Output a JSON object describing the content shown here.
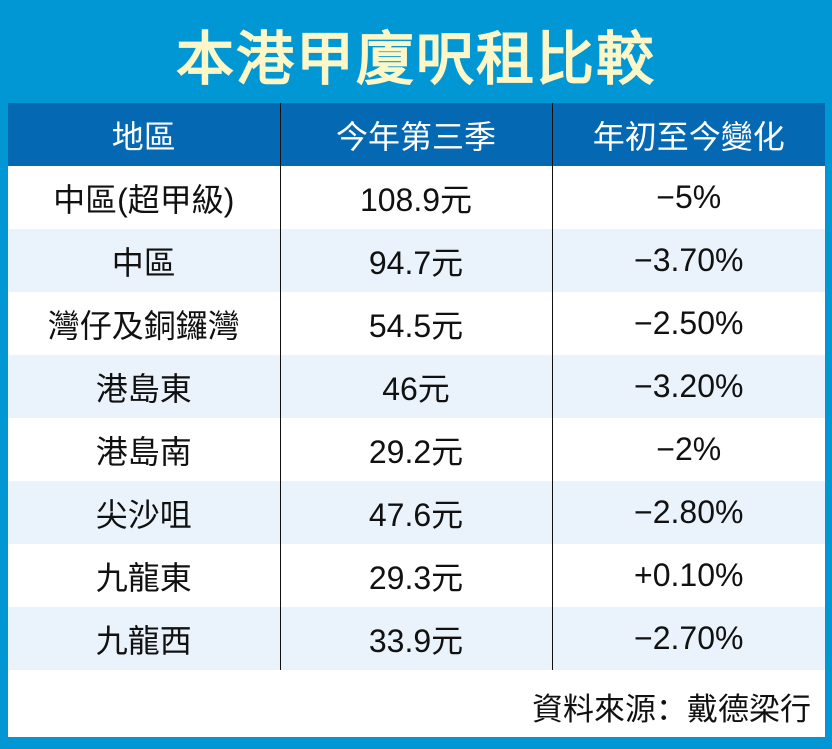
{
  "title": "本港甲廈呎租比較",
  "table": {
    "headers": [
      "地區",
      "今年第三季",
      "年初至今變化"
    ],
    "rows": [
      {
        "district": "中區(超甲級)",
        "q3_rent": "108.9元",
        "ytd_change": "−5%"
      },
      {
        "district": "中區",
        "q3_rent": "94.7元",
        "ytd_change": "−3.70%"
      },
      {
        "district": "灣仔及銅鑼灣",
        "q3_rent": "54.5元",
        "ytd_change": "−2.50%"
      },
      {
        "district": "港島東",
        "q3_rent": "46元",
        "ytd_change": "−3.20%"
      },
      {
        "district": "港島南",
        "q3_rent": "29.2元",
        "ytd_change": "−2%"
      },
      {
        "district": "尖沙咀",
        "q3_rent": "47.6元",
        "ytd_change": "−2.80%"
      },
      {
        "district": "九龍東",
        "q3_rent": "29.3元",
        "ytd_change": "+0.10%"
      },
      {
        "district": "九龍西",
        "q3_rent": "33.9元",
        "ytd_change": "−2.70%"
      }
    ]
  },
  "source": "資料來源：戴德梁行",
  "colors": {
    "frame": "#0197D4",
    "header_bg": "#0568B3",
    "title_text": "#FDF7C8",
    "row_alt": "#EAF3FC"
  }
}
